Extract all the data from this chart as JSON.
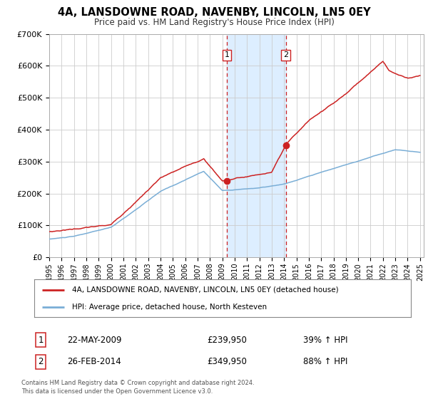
{
  "title": "4A, LANSDOWNE ROAD, NAVENBY, LINCOLN, LN5 0EY",
  "subtitle": "Price paid vs. HM Land Registry's House Price Index (HPI)",
  "ylim": [
    0,
    700000
  ],
  "yticks": [
    0,
    100000,
    200000,
    300000,
    400000,
    500000,
    600000,
    700000
  ],
  "ytick_labels": [
    "£0",
    "£100K",
    "£200K",
    "£300K",
    "£400K",
    "£500K",
    "£600K",
    "£700K"
  ],
  "hpi_color": "#7aaed6",
  "price_color": "#cc2222",
  "marker1_date": 2009.38,
  "marker2_date": 2014.15,
  "marker1_price": 239950,
  "marker2_price": 349950,
  "marker1_label": "1",
  "marker2_label": "2",
  "shade_color": "#ddeeff",
  "vline_color": "#cc2222",
  "legend_line1": "4A, LANSDOWNE ROAD, NAVENBY, LINCOLN, LN5 0EY (detached house)",
  "legend_line2": "HPI: Average price, detached house, North Kesteven",
  "table_row1_num": "1",
  "table_row1_date": "22-MAY-2009",
  "table_row1_price": "£239,950",
  "table_row1_hpi": "39% ↑ HPI",
  "table_row2_num": "2",
  "table_row2_date": "26-FEB-2014",
  "table_row2_price": "£349,950",
  "table_row2_hpi": "88% ↑ HPI",
  "footnote1": "Contains HM Land Registry data © Crown copyright and database right 2024.",
  "footnote2": "This data is licensed under the Open Government Licence v3.0.",
  "background_color": "#ffffff",
  "grid_color": "#cccccc"
}
